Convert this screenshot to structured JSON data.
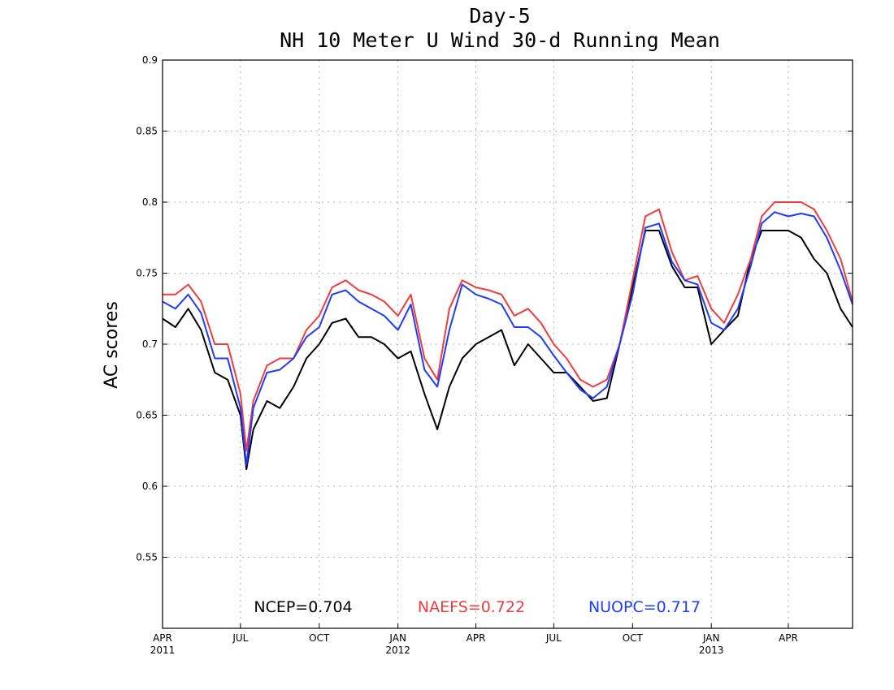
{
  "title_line1": "Day-5",
  "title_line2": "NH 10 Meter U Wind 30-d Running Mean",
  "chart_data": {
    "type": "line",
    "title": "Day-5 NH 10 Meter U Wind 30-d Running Mean",
    "xlabel": "",
    "ylabel": "AC scores",
    "xlim": [
      "2011-04-01",
      "2013-06-15"
    ],
    "ylim": [
      0.5,
      0.9
    ],
    "yticks": [
      0.55,
      0.6,
      0.65,
      0.7,
      0.75,
      0.8,
      0.85,
      0.9
    ],
    "ytick_labels": [
      "0.55",
      "0.6",
      "0.65",
      "0.7",
      "0.75",
      "0.8",
      "0.85",
      "0.9"
    ],
    "xticks": [
      {
        "date": "2011-04-01",
        "label": "APR",
        "year": "2011"
      },
      {
        "date": "2011-07-01",
        "label": "JUL",
        "year": ""
      },
      {
        "date": "2011-10-01",
        "label": "OCT",
        "year": ""
      },
      {
        "date": "2012-01-01",
        "label": "JAN",
        "year": "2012"
      },
      {
        "date": "2012-04-01",
        "label": "APR",
        "year": ""
      },
      {
        "date": "2012-07-01",
        "label": "JUL",
        "year": ""
      },
      {
        "date": "2012-10-01",
        "label": "OCT",
        "year": ""
      },
      {
        "date": "2013-01-01",
        "label": "JAN",
        "year": "2013"
      },
      {
        "date": "2013-04-01",
        "label": "APR",
        "year": ""
      }
    ],
    "grid": true,
    "legend": [
      {
        "label": "NCEP=0.704",
        "color": "#000000"
      },
      {
        "label": "NAEFS=0.722",
        "color": "#f03c3c"
      },
      {
        "label": "NUOPC=0.717",
        "color": "#1e3cff"
      }
    ],
    "x": [
      "2011-04-01",
      "2011-04-16",
      "2011-05-01",
      "2011-05-16",
      "2011-06-01",
      "2011-06-16",
      "2011-07-01",
      "2011-07-08",
      "2011-07-16",
      "2011-08-01",
      "2011-08-16",
      "2011-09-01",
      "2011-09-16",
      "2011-10-01",
      "2011-10-16",
      "2011-11-01",
      "2011-11-16",
      "2011-12-01",
      "2011-12-16",
      "2012-01-01",
      "2012-01-16",
      "2012-02-01",
      "2012-02-16",
      "2012-03-01",
      "2012-03-16",
      "2012-04-01",
      "2012-04-16",
      "2012-05-01",
      "2012-05-16",
      "2012-06-01",
      "2012-06-16",
      "2012-07-01",
      "2012-07-16",
      "2012-08-01",
      "2012-08-16",
      "2012-09-01",
      "2012-09-16",
      "2012-10-01",
      "2012-10-16",
      "2012-11-01",
      "2012-11-16",
      "2012-12-01",
      "2012-12-16",
      "2013-01-01",
      "2013-01-16",
      "2013-02-01",
      "2013-02-16",
      "2013-03-01",
      "2013-03-16",
      "2013-04-01",
      "2013-04-16",
      "2013-05-01",
      "2013-05-16",
      "2013-06-01",
      "2013-06-15"
    ],
    "series": [
      {
        "name": "NCEP=0.704",
        "color": "#000000",
        "values": [
          0.718,
          0.712,
          0.725,
          0.71,
          0.68,
          0.675,
          0.65,
          0.612,
          0.64,
          0.66,
          0.655,
          0.67,
          0.69,
          0.7,
          0.715,
          0.718,
          0.705,
          0.705,
          0.7,
          0.69,
          0.695,
          0.665,
          0.64,
          0.67,
          0.69,
          0.7,
          0.705,
          0.71,
          0.685,
          0.7,
          0.69,
          0.68,
          0.68,
          0.67,
          0.66,
          0.662,
          0.7,
          0.74,
          0.78,
          0.78,
          0.755,
          0.74,
          0.74,
          0.7,
          0.71,
          0.72,
          0.76,
          0.78,
          0.78,
          0.78,
          0.775,
          0.76,
          0.75,
          0.725,
          0.712
        ]
      },
      {
        "name": "NAEFS=0.722",
        "color": "#f03c3c",
        "values": [
          0.735,
          0.735,
          0.742,
          0.73,
          0.7,
          0.7,
          0.665,
          0.625,
          0.66,
          0.685,
          0.69,
          0.69,
          0.71,
          0.72,
          0.74,
          0.745,
          0.738,
          0.735,
          0.73,
          0.72,
          0.735,
          0.69,
          0.675,
          0.725,
          0.745,
          0.74,
          0.738,
          0.735,
          0.72,
          0.725,
          0.715,
          0.7,
          0.69,
          0.675,
          0.67,
          0.675,
          0.7,
          0.745,
          0.79,
          0.795,
          0.765,
          0.745,
          0.748,
          0.725,
          0.715,
          0.735,
          0.76,
          0.79,
          0.8,
          0.8,
          0.8,
          0.795,
          0.78,
          0.76,
          0.73
        ]
      },
      {
        "name": "NUOPC=0.717",
        "color": "#1e3cff",
        "values": [
          0.73,
          0.725,
          0.735,
          0.722,
          0.69,
          0.69,
          0.655,
          0.615,
          0.655,
          0.68,
          0.682,
          0.69,
          0.705,
          0.712,
          0.735,
          0.738,
          0.73,
          0.725,
          0.72,
          0.71,
          0.728,
          0.682,
          0.67,
          0.71,
          0.742,
          0.735,
          0.732,
          0.728,
          0.712,
          0.712,
          0.705,
          0.692,
          0.68,
          0.668,
          0.662,
          0.67,
          0.7,
          0.735,
          0.782,
          0.785,
          0.758,
          0.745,
          0.742,
          0.715,
          0.71,
          0.725,
          0.755,
          0.785,
          0.793,
          0.79,
          0.792,
          0.79,
          0.775,
          0.752,
          0.728
        ]
      }
    ]
  }
}
